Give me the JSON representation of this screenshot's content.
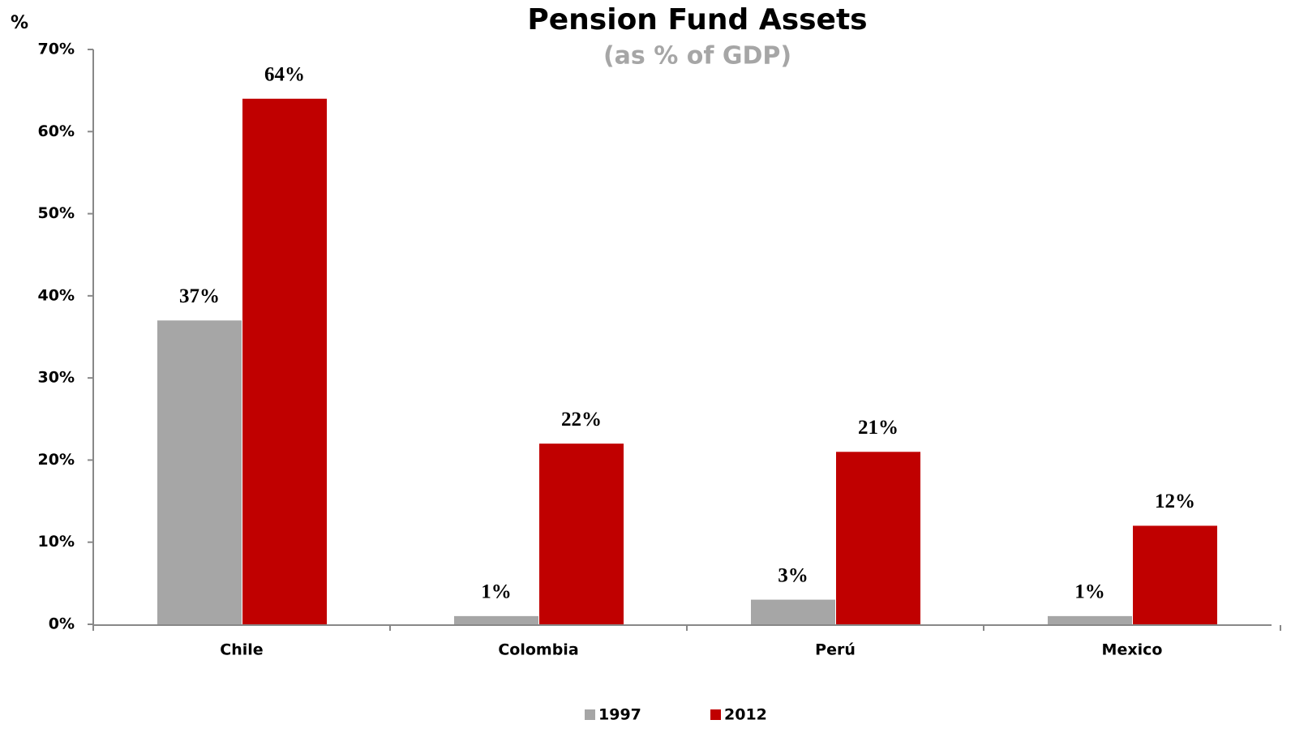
{
  "chart_data": {
    "type": "bar",
    "title": "Pension Fund Assets",
    "subtitle": "(as % of GDP)",
    "y_label": "%",
    "categories": [
      "Chile",
      "Colombia",
      "Perú",
      "Mexico"
    ],
    "series": [
      {
        "name": "1997",
        "color": "#a6a6a6",
        "values": [
          37,
          1,
          3,
          1
        ],
        "value_labels": [
          "37%",
          "1%",
          "3%",
          "1%"
        ]
      },
      {
        "name": "2012",
        "color": "#c00000",
        "values": [
          64,
          22,
          21,
          12
        ],
        "value_labels": [
          "64%",
          "22%",
          "21%",
          "12%"
        ]
      }
    ],
    "ylim": [
      0,
      70
    ],
    "yticks": [
      {
        "value": 0,
        "label": "0%"
      },
      {
        "value": 10,
        "label": "10%"
      },
      {
        "value": 20,
        "label": "20%"
      },
      {
        "value": 30,
        "label": "30%"
      },
      {
        "value": 40,
        "label": "40%"
      },
      {
        "value": 50,
        "label": "50%"
      },
      {
        "value": 60,
        "label": "60%"
      },
      {
        "value": 70,
        "label": "70%"
      }
    ],
    "grid": false,
    "legend": "bottom"
  }
}
